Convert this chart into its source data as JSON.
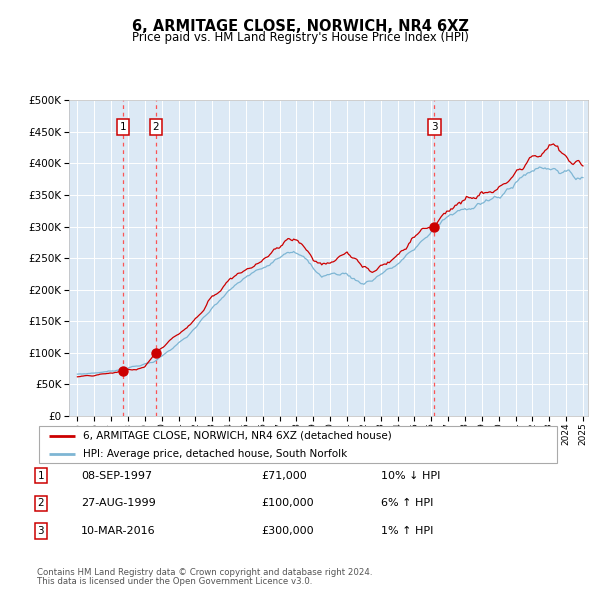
{
  "title": "6, ARMITAGE CLOSE, NORWICH, NR4 6XZ",
  "subtitle": "Price paid vs. HM Land Registry's House Price Index (HPI)",
  "legend_line1": "6, ARMITAGE CLOSE, NORWICH, NR4 6XZ (detached house)",
  "legend_line2": "HPI: Average price, detached house, South Norfolk",
  "footer1": "Contains HM Land Registry data © Crown copyright and database right 2024.",
  "footer2": "This data is licensed under the Open Government Licence v3.0.",
  "transactions": [
    {
      "num": 1,
      "date": "08-SEP-1997",
      "price": 71000,
      "pct": "10%",
      "dir": "↓",
      "year": 1997.69
    },
    {
      "num": 2,
      "date": "27-AUG-1999",
      "price": 100000,
      "pct": "6%",
      "dir": "↑",
      "year": 1999.65
    },
    {
      "num": 3,
      "date": "10-MAR-2016",
      "price": 300000,
      "pct": "1%",
      "dir": "↑",
      "year": 2016.19
    }
  ],
  "hpi_color": "#7eb6d4",
  "price_color": "#cc0000",
  "dot_color": "#cc0000",
  "vline_color": "#ff4444",
  "bg_color": "#dce9f5",
  "grid_color": "#ffffff",
  "box_color": "#cc0000",
  "ylim": [
    0,
    500000
  ],
  "yticks": [
    0,
    50000,
    100000,
    150000,
    200000,
    250000,
    300000,
    350000,
    400000,
    450000,
    500000
  ],
  "xlim_start": 1994.5,
  "xlim_end": 2025.3
}
